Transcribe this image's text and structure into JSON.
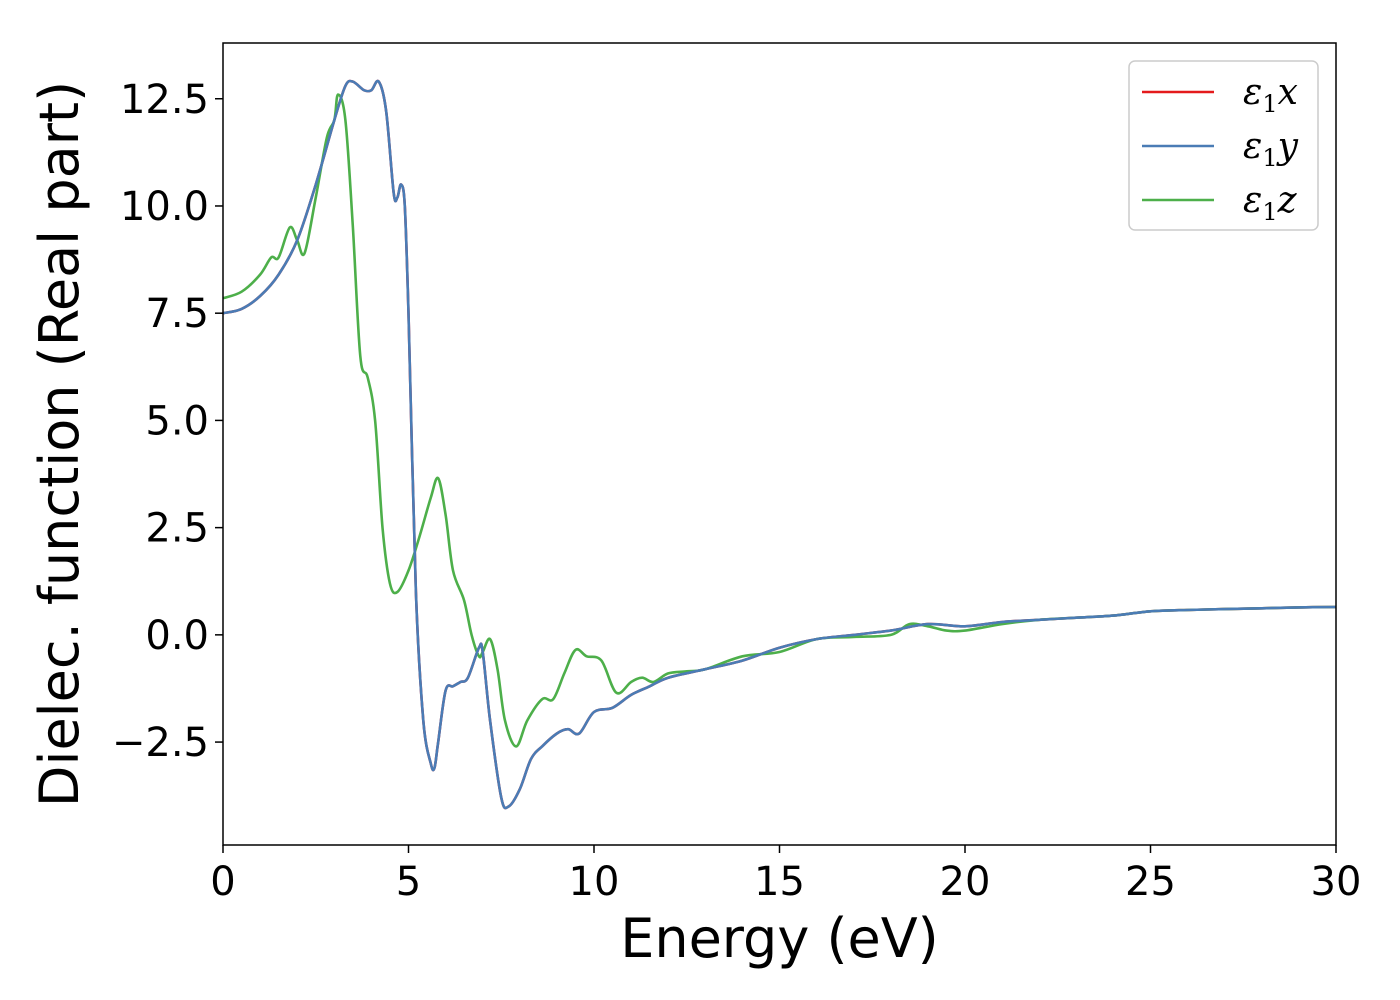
{
  "chart_data": {
    "type": "line",
    "xlabel": "Energy (eV)",
    "ylabel": "Dielec. function (Real part)",
    "xlim": [
      0,
      30
    ],
    "ylim": [
      -4.9,
      13.8
    ],
    "xticks": [
      0,
      5,
      10,
      15,
      20,
      25,
      30
    ],
    "xtick_labels": [
      "0",
      "5",
      "10",
      "15",
      "20",
      "25",
      "30"
    ],
    "yticks": [
      -2.5,
      0.0,
      2.5,
      5.0,
      7.5,
      10.0,
      12.5
    ],
    "ytick_labels": [
      "−2.5",
      "0.0",
      "2.5",
      "5.0",
      "7.5",
      "10.0",
      "12.5"
    ],
    "grid": false,
    "legend_position": "top-right",
    "series": [
      {
        "name": "ε₁x",
        "legend_main": "ε",
        "legend_sub": "1",
        "legend_axis": "x",
        "color": "#e41a1c",
        "points": [
          [
            0,
            7.5
          ],
          [
            0.5,
            7.6
          ],
          [
            1.0,
            7.9
          ],
          [
            1.5,
            8.4
          ],
          [
            2.0,
            9.2
          ],
          [
            2.5,
            10.5
          ],
          [
            3.0,
            12.0
          ],
          [
            3.3,
            12.8
          ],
          [
            3.5,
            12.9
          ],
          [
            3.8,
            12.7
          ],
          [
            4.0,
            12.7
          ],
          [
            4.2,
            12.9
          ],
          [
            4.4,
            12.2
          ],
          [
            4.6,
            10.3
          ],
          [
            4.7,
            10.2
          ],
          [
            4.8,
            10.5
          ],
          [
            4.9,
            10.0
          ],
          [
            5.0,
            7.5
          ],
          [
            5.2,
            1.0
          ],
          [
            5.4,
            -2.0
          ],
          [
            5.6,
            -3.0
          ],
          [
            5.7,
            -3.1
          ],
          [
            5.8,
            -2.5
          ],
          [
            6.0,
            -1.3
          ],
          [
            6.2,
            -1.2
          ],
          [
            6.4,
            -1.1
          ],
          [
            6.6,
            -1.0
          ],
          [
            6.9,
            -0.3
          ],
          [
            7.0,
            -0.4
          ],
          [
            7.2,
            -2.0
          ],
          [
            7.5,
            -3.8
          ],
          [
            7.7,
            -4.0
          ],
          [
            8.0,
            -3.6
          ],
          [
            8.3,
            -2.9
          ],
          [
            8.6,
            -2.6
          ],
          [
            9.0,
            -2.3
          ],
          [
            9.3,
            -2.2
          ],
          [
            9.6,
            -2.3
          ],
          [
            10.0,
            -1.8
          ],
          [
            10.5,
            -1.7
          ],
          [
            11.0,
            -1.4
          ],
          [
            11.5,
            -1.2
          ],
          [
            12.0,
            -1.0
          ],
          [
            13.0,
            -0.8
          ],
          [
            14.0,
            -0.6
          ],
          [
            15.0,
            -0.3
          ],
          [
            16.0,
            -0.1
          ],
          [
            17.0,
            0.0
          ],
          [
            18.0,
            0.1
          ],
          [
            19.0,
            0.25
          ],
          [
            20.0,
            0.2
          ],
          [
            21.0,
            0.3
          ],
          [
            22.0,
            0.35
          ],
          [
            23.0,
            0.4
          ],
          [
            24.0,
            0.45
          ],
          [
            25.0,
            0.55
          ],
          [
            26.0,
            0.58
          ],
          [
            27.0,
            0.6
          ],
          [
            28.0,
            0.62
          ],
          [
            29.0,
            0.64
          ],
          [
            30.0,
            0.65
          ]
        ]
      },
      {
        "name": "ε₁y",
        "legend_main": "ε",
        "legend_sub": "1",
        "legend_axis": "y",
        "color": "#4a7cb5",
        "points": [
          [
            0,
            7.5
          ],
          [
            0.5,
            7.6
          ],
          [
            1.0,
            7.9
          ],
          [
            1.5,
            8.4
          ],
          [
            2.0,
            9.2
          ],
          [
            2.5,
            10.5
          ],
          [
            3.0,
            12.0
          ],
          [
            3.3,
            12.8
          ],
          [
            3.5,
            12.9
          ],
          [
            3.8,
            12.7
          ],
          [
            4.0,
            12.7
          ],
          [
            4.2,
            12.9
          ],
          [
            4.4,
            12.2
          ],
          [
            4.6,
            10.3
          ],
          [
            4.7,
            10.2
          ],
          [
            4.8,
            10.5
          ],
          [
            4.9,
            10.0
          ],
          [
            5.0,
            7.5
          ],
          [
            5.2,
            1.0
          ],
          [
            5.4,
            -2.0
          ],
          [
            5.6,
            -3.0
          ],
          [
            5.7,
            -3.1
          ],
          [
            5.8,
            -2.5
          ],
          [
            6.0,
            -1.3
          ],
          [
            6.2,
            -1.2
          ],
          [
            6.4,
            -1.1
          ],
          [
            6.6,
            -1.0
          ],
          [
            6.9,
            -0.3
          ],
          [
            7.0,
            -0.4
          ],
          [
            7.2,
            -2.0
          ],
          [
            7.5,
            -3.8
          ],
          [
            7.7,
            -4.0
          ],
          [
            8.0,
            -3.6
          ],
          [
            8.3,
            -2.9
          ],
          [
            8.6,
            -2.6
          ],
          [
            9.0,
            -2.3
          ],
          [
            9.3,
            -2.2
          ],
          [
            9.6,
            -2.3
          ],
          [
            10.0,
            -1.8
          ],
          [
            10.5,
            -1.7
          ],
          [
            11.0,
            -1.4
          ],
          [
            11.5,
            -1.2
          ],
          [
            12.0,
            -1.0
          ],
          [
            13.0,
            -0.8
          ],
          [
            14.0,
            -0.6
          ],
          [
            15.0,
            -0.3
          ],
          [
            16.0,
            -0.1
          ],
          [
            17.0,
            0.0
          ],
          [
            18.0,
            0.1
          ],
          [
            19.0,
            0.25
          ],
          [
            20.0,
            0.2
          ],
          [
            21.0,
            0.3
          ],
          [
            22.0,
            0.35
          ],
          [
            23.0,
            0.4
          ],
          [
            24.0,
            0.45
          ],
          [
            25.0,
            0.55
          ],
          [
            26.0,
            0.58
          ],
          [
            27.0,
            0.6
          ],
          [
            28.0,
            0.62
          ],
          [
            29.0,
            0.64
          ],
          [
            30.0,
            0.65
          ]
        ]
      },
      {
        "name": "ε₁z",
        "legend_main": "ε",
        "legend_sub": "1",
        "legend_axis": "z",
        "color": "#4daf4a",
        "points": [
          [
            0,
            7.85
          ],
          [
            0.5,
            8.0
          ],
          [
            1.0,
            8.4
          ],
          [
            1.3,
            8.8
          ],
          [
            1.5,
            8.8
          ],
          [
            1.8,
            9.5
          ],
          [
            2.0,
            9.2
          ],
          [
            2.2,
            8.9
          ],
          [
            2.5,
            10.2
          ],
          [
            2.8,
            11.6
          ],
          [
            3.0,
            12.0
          ],
          [
            3.1,
            12.6
          ],
          [
            3.3,
            12.0
          ],
          [
            3.5,
            9.5
          ],
          [
            3.7,
            6.5
          ],
          [
            3.9,
            6.0
          ],
          [
            4.1,
            5.0
          ],
          [
            4.3,
            2.5
          ],
          [
            4.5,
            1.2
          ],
          [
            4.7,
            1.0
          ],
          [
            5.0,
            1.5
          ],
          [
            5.3,
            2.3
          ],
          [
            5.6,
            3.2
          ],
          [
            5.8,
            3.65
          ],
          [
            6.0,
            2.8
          ],
          [
            6.2,
            1.5
          ],
          [
            6.5,
            0.8
          ],
          [
            6.7,
            0.0
          ],
          [
            6.9,
            -0.5
          ],
          [
            7.0,
            -0.4
          ],
          [
            7.2,
            -0.1
          ],
          [
            7.4,
            -0.8
          ],
          [
            7.6,
            -2.0
          ],
          [
            7.9,
            -2.6
          ],
          [
            8.2,
            -2.0
          ],
          [
            8.6,
            -1.5
          ],
          [
            8.9,
            -1.5
          ],
          [
            9.2,
            -0.9
          ],
          [
            9.5,
            -0.35
          ],
          [
            9.8,
            -0.5
          ],
          [
            10.2,
            -0.6
          ],
          [
            10.6,
            -1.35
          ],
          [
            11.0,
            -1.1
          ],
          [
            11.3,
            -1.0
          ],
          [
            11.6,
            -1.1
          ],
          [
            12.0,
            -0.9
          ],
          [
            12.5,
            -0.85
          ],
          [
            13.0,
            -0.8
          ],
          [
            14.0,
            -0.5
          ],
          [
            15.0,
            -0.4
          ],
          [
            16.0,
            -0.1
          ],
          [
            17.0,
            -0.05
          ],
          [
            18.0,
            0.0
          ],
          [
            18.5,
            0.25
          ],
          [
            19.0,
            0.2
          ],
          [
            19.5,
            0.1
          ],
          [
            20.0,
            0.1
          ],
          [
            21.0,
            0.25
          ],
          [
            22.0,
            0.35
          ],
          [
            23.0,
            0.4
          ],
          [
            24.0,
            0.45
          ],
          [
            25.0,
            0.55
          ],
          [
            26.0,
            0.58
          ],
          [
            27.0,
            0.6
          ],
          [
            28.0,
            0.62
          ],
          [
            29.0,
            0.64
          ],
          [
            30.0,
            0.65
          ]
        ]
      }
    ]
  }
}
